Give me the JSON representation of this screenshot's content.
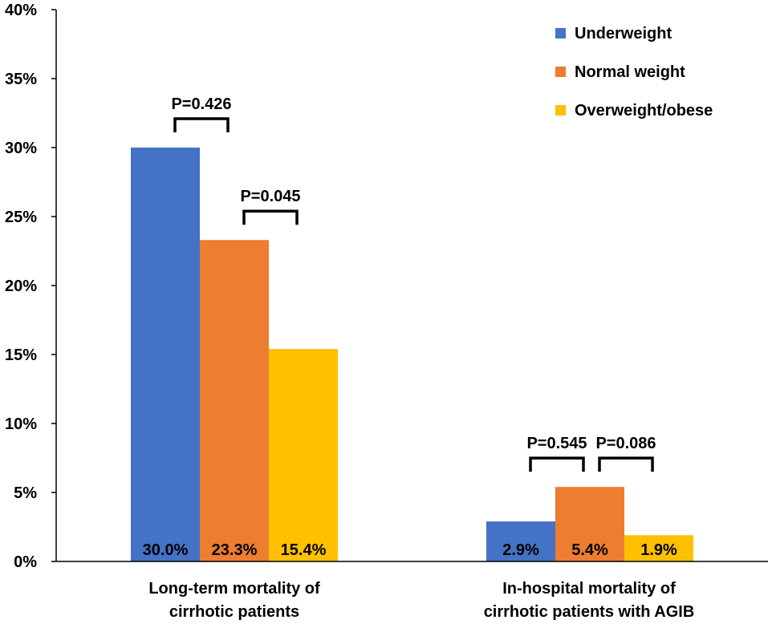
{
  "chart_data": {
    "type": "bar",
    "title": "",
    "xlabel": "",
    "ylabel": "",
    "ylim": [
      0,
      40
    ],
    "yticks": [
      "0%",
      "5%",
      "10%",
      "15%",
      "20%",
      "25%",
      "30%",
      "35%",
      "40%"
    ],
    "ytick_values": [
      0,
      5,
      10,
      15,
      20,
      25,
      30,
      35,
      40
    ],
    "categories": [
      [
        "Long-term mortality of",
        "cirrhotic patients"
      ],
      [
        "In-hospital mortality of",
        "cirrhotic patients with AGIB"
      ]
    ],
    "series": [
      {
        "name": "Underweight",
        "color": "#4472C4",
        "values": [
          30.0,
          2.9
        ],
        "labels": [
          "30.0%",
          "2.9%"
        ]
      },
      {
        "name": "Normal weight",
        "color": "#ED7D31",
        "values": [
          23.3,
          5.4
        ],
        "labels": [
          "23.3%",
          "5.4%"
        ]
      },
      {
        "name": "Overweight/obese",
        "color": "#FFC000",
        "values": [
          15.4,
          1.9
        ],
        "labels": [
          "15.4%",
          "1.9%"
        ]
      }
    ],
    "legend_position": "top-right",
    "annotations": [
      {
        "category": 0,
        "from_series": 0,
        "to_series": 1,
        "text": "P=0.426"
      },
      {
        "category": 0,
        "from_series": 1,
        "to_series": 2,
        "text": "P=0.045"
      },
      {
        "category": 1,
        "from_series": 0,
        "to_series": 1,
        "text": "P=0.545"
      },
      {
        "category": 1,
        "from_series": 1,
        "to_series": 2,
        "text": "P=0.086"
      }
    ]
  }
}
